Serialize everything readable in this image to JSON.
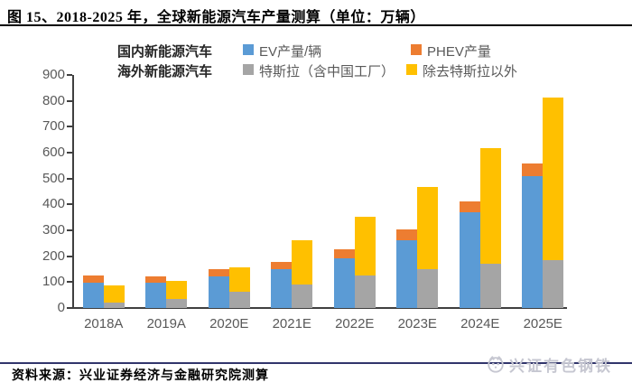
{
  "figure": {
    "title": "图 15、2018-2025 年，全球新能源汽车产量测算（单位：万辆）"
  },
  "legend": {
    "groups": [
      {
        "label": "国内新能源汽车",
        "items": [
          {
            "label": "EV产量/辆",
            "color": "#5B9BD5"
          },
          {
            "label": "PHEV产量",
            "color": "#ED7D31"
          }
        ]
      },
      {
        "label": "海外新能源汽车",
        "items": [
          {
            "label": "特斯拉（含中国工厂）",
            "color": "#A5A5A5"
          },
          {
            "label": "除去特斯拉以外",
            "color": "#FFC000"
          }
        ]
      }
    ]
  },
  "chart_data": {
    "type": "bar",
    "stacked": true,
    "unit": "万辆",
    "title": "全球新能源汽车产量测算",
    "categories": [
      "2018A",
      "2019A",
      "2020E",
      "2021E",
      "2022E",
      "2023E",
      "2024E",
      "2025E"
    ],
    "series": [
      {
        "name": "EV产量/辆",
        "stack": "domestic",
        "color": "#5B9BD5",
        "values": [
          98,
          97,
          121,
          149,
          192,
          263,
          371,
          511
        ]
      },
      {
        "name": "PHEV产量",
        "stack": "domestic",
        "color": "#ED7D31",
        "values": [
          28,
          24,
          28,
          29,
          35,
          39,
          40,
          48
        ]
      },
      {
        "name": "特斯拉（含中国工厂）",
        "stack": "overseas",
        "color": "#A5A5A5",
        "values": [
          22,
          34,
          62,
          89,
          126,
          151,
          172,
          184
        ]
      },
      {
        "name": "除去特斯拉以外",
        "stack": "overseas",
        "color": "#FFC000",
        "values": [
          66,
          71,
          96,
          173,
          226,
          317,
          445,
          630
        ]
      }
    ],
    "ylim": [
      0,
      900
    ],
    "ytick_step": 100,
    "grid": false,
    "legend_position": "top"
  },
  "footer": {
    "source": "资料来源：兴业证券经济与金融研究院测算",
    "logo_text": "兴证有色钢铁"
  },
  "colors": {
    "axis": "#3f3f3f",
    "tick_label": "#595959",
    "title_rule": "#000000",
    "footer_rule": "#31356b",
    "logo": "#c6c7d1"
  }
}
